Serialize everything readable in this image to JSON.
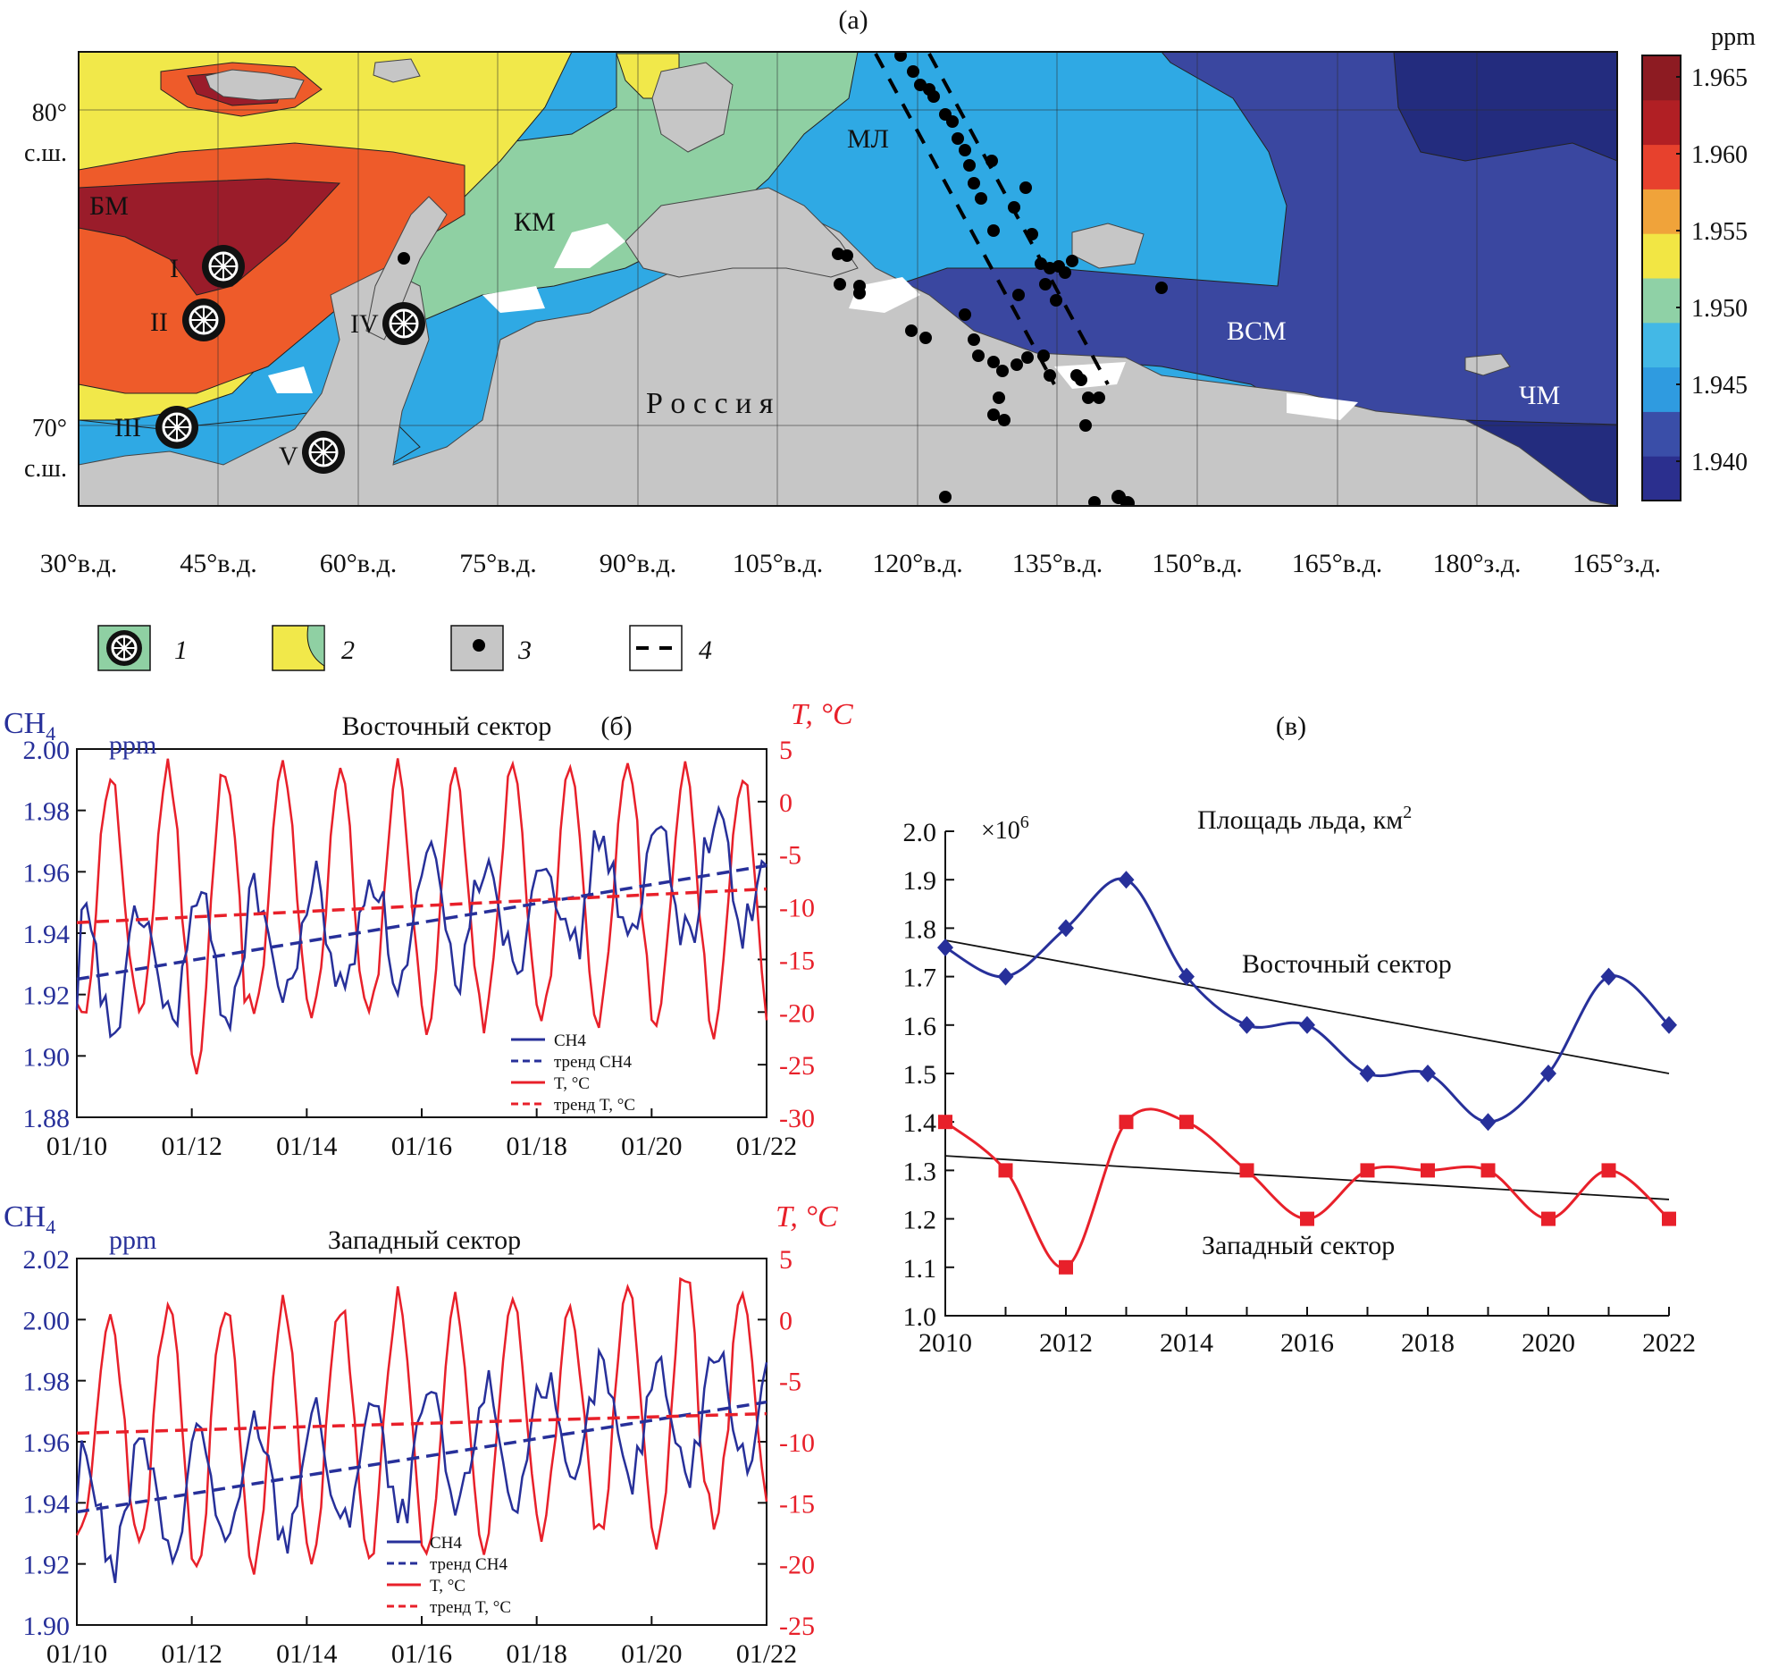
{
  "figure": {
    "panel_a_label": "(а)",
    "panel_b_label": "(б)",
    "panel_c_label": "(в)"
  },
  "map": {
    "lat_labels": [
      {
        "deg": "80°",
        "hemi": "с.ш."
      },
      {
        "deg": "70°",
        "hemi": "с.ш."
      }
    ],
    "lon_labels": [
      "30°в.д.",
      "45°в.д.",
      "60°в.д.",
      "75°в.д.",
      "90°в.д.",
      "105°в.д.",
      "120°в.д.",
      "135°в.д.",
      "150°в.д.",
      "165°в.д.",
      "180°з.д.",
      "165°з.д."
    ],
    "sea_labels": [
      "БМ",
      "КМ",
      "МЛ",
      "ВСМ",
      "ЧМ"
    ],
    "country_label": "Р о с с и я",
    "stations": [
      "I",
      "II",
      "III",
      "IV",
      "V"
    ],
    "colorbar": {
      "unit": "ppm",
      "ticks": [
        "1.965",
        "1.960",
        "1.955",
        "1.950",
        "1.945",
        "1.940"
      ],
      "colors": [
        "#2b2f8e",
        "#3a4ea8",
        "#2f9be0",
        "#43b8e6",
        "#8fd1a6",
        "#f2e644",
        "#f0a33a",
        "#e7412d",
        "#b11f24",
        "#8d1b22"
      ]
    },
    "legend": [
      "1",
      "2",
      "3",
      "4"
    ],
    "colors": {
      "land": "#c6c6c6",
      "darkred": "#9a1c2a",
      "orange": "#ee5b2a",
      "yellow": "#f1e84a",
      "green": "#8fd0a3",
      "cyan": "#2fa9e4",
      "navy": "#3a47a0",
      "deepnavy": "#232c7e"
    }
  },
  "chart_data": [
    {
      "type": "line",
      "title": "Восточный сектор",
      "y_label": "CH",
      "y_label_sub": "4",
      "y_unit": "ppm",
      "y2_label": "T, °C",
      "x_ticks": [
        "01/10",
        "01/12",
        "01/14",
        "01/16",
        "01/18",
        "01/20",
        "01/22"
      ],
      "ylim": [
        1.88,
        2.0
      ],
      "y_ticks": [
        "1.88",
        "1.90",
        "1.92",
        "1.94",
        "1.96",
        "1.98",
        "2.00"
      ],
      "y2lim": [
        -30,
        5
      ],
      "y2_ticks": [
        "5",
        "0",
        "-5",
        "-10",
        "-15",
        "-20",
        "-25",
        "-30"
      ],
      "ch4_trend": [
        1.925,
        1.962
      ],
      "t_trend": [
        -11.5,
        -8.3
      ],
      "ch4_series": {
        "start": 1.925,
        "end": 1.962,
        "amp": 0.021,
        "noise": 0.008,
        "first": 1.915,
        "last": 1.962
      },
      "t_series": {
        "mean": -10,
        "amp": 11.5,
        "summer_max": [
          2.5,
          3.3,
          3.5,
          3.5,
          3.5,
          3.3,
          2.8,
          3.3,
          3.8,
          4,
          3.8,
          2.2
        ],
        "winter_min": [
          -21,
          -20,
          -26,
          -20.5,
          -20.5,
          -20.5,
          -21,
          -21,
          -21,
          -20.5,
          -21,
          -21.5
        ]
      },
      "legend": [
        {
          "label": "CH4",
          "color": "#27309a",
          "dash": false
        },
        {
          "label": "тренд CH4",
          "color": "#27309a",
          "dash": true
        },
        {
          "label": "T, °C",
          "color": "#e8202a",
          "dash": false
        },
        {
          "label": "тренд T, °C",
          "color": "#e8202a",
          "dash": true
        }
      ]
    },
    {
      "type": "line",
      "title": "Западный сектор",
      "y_label": "CH",
      "y_label_sub": "4",
      "y_unit": "ppm",
      "y2_label": "T, °C",
      "x_ticks": [
        "01/10",
        "01/12",
        "01/14",
        "01/16",
        "01/18",
        "01/20",
        "01/22"
      ],
      "ylim": [
        1.9,
        2.02
      ],
      "y_ticks": [
        "1.90",
        "1.92",
        "1.94",
        "1.96",
        "1.98",
        "2.00",
        "2.02"
      ],
      "y2lim": [
        -25,
        5
      ],
      "y2_ticks": [
        "5",
        "0",
        "-5",
        "-10",
        "-15",
        "-20",
        "-25"
      ],
      "ch4_trend": [
        1.937,
        1.973
      ],
      "t_trend": [
        -9.3,
        -7.7
      ],
      "ch4_series": {
        "start": 1.937,
        "end": 1.973,
        "amp": 0.022,
        "noise": 0.007,
        "first": 1.94,
        "last": 1.986
      },
      "t_series": {
        "mean": -8.5,
        "amp": 9.5,
        "summer_max": [
          0,
          0.5,
          1,
          1,
          1,
          1.5,
          1.5,
          2,
          1.5,
          3,
          4,
          2.5
        ],
        "winter_min": [
          -18,
          -19,
          -21,
          -21,
          -20.5,
          -20.5,
          -20,
          -18.5,
          -18.5,
          -17.5,
          -18.5,
          -16
        ]
      },
      "legend": [
        {
          "label": "CH4",
          "color": "#27309a",
          "dash": false
        },
        {
          "label": "тренд CH4",
          "color": "#27309a",
          "dash": true
        },
        {
          "label": "T, °C",
          "color": "#e8202a",
          "dash": false
        },
        {
          "label": "тренд T, °C",
          "color": "#e8202a",
          "dash": true
        }
      ]
    },
    {
      "type": "line",
      "title": "Площадь льда, км",
      "title_sup": "2",
      "multiplier": "×10",
      "multiplier_sup": "6",
      "x": [
        2010,
        2011,
        2012,
        2013,
        2014,
        2015,
        2016,
        2017,
        2018,
        2019,
        2020,
        2021,
        2022
      ],
      "x_ticks": [
        "2010",
        "2012",
        "2014",
        "2016",
        "2018",
        "2020",
        "2022"
      ],
      "ylim": [
        1.0,
        2.0
      ],
      "y_ticks": [
        "1.0",
        "1.1",
        "1.2",
        "1.3",
        "1.4",
        "1.5",
        "1.6",
        "1.7",
        "1.8",
        "1.9",
        "2.0"
      ],
      "series": [
        {
          "name": "Восточный сектор",
          "color": "#27309a",
          "marker": "diamond",
          "values": [
            1.76,
            1.7,
            1.8,
            1.9,
            1.7,
            1.6,
            1.6,
            1.5,
            1.5,
            1.4,
            1.5,
            1.7,
            1.6
          ],
          "trend": [
            1.775,
            1.5
          ]
        },
        {
          "name": "Западный сектор",
          "color": "#e8202a",
          "marker": "square",
          "values": [
            1.4,
            1.3,
            1.1,
            1.4,
            1.4,
            1.3,
            1.2,
            1.3,
            1.3,
            1.3,
            1.2,
            1.3,
            1.2
          ],
          "trend": [
            1.33,
            1.24
          ]
        }
      ]
    }
  ]
}
